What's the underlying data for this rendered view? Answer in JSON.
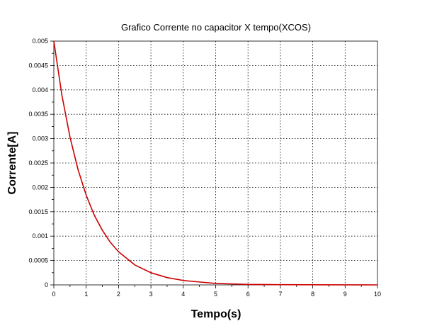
{
  "chart_data": {
    "type": "line",
    "title": "Grafico Corrente no capacitor X tempo(XCOS)",
    "xlabel": "Tempo(s)",
    "ylabel": "Corrente[A]",
    "xlim": [
      0,
      10
    ],
    "ylim": [
      0,
      0.005
    ],
    "xticks": [
      "0",
      "1",
      "2",
      "3",
      "4",
      "5",
      "6",
      "7",
      "8",
      "9",
      "10"
    ],
    "yticks": [
      "0",
      "0.0005",
      "0.001",
      "0.0015",
      "0.002",
      "0.0025",
      "0.003",
      "0.0035",
      "0.004",
      "0.0045",
      "0.005"
    ],
    "grid": true,
    "series": [
      {
        "color": "#cc0000",
        "x": [
          0,
          0.25,
          0.5,
          0.75,
          1,
          1.25,
          1.5,
          1.75,
          2,
          2.5,
          3,
          3.5,
          4,
          4.5,
          5,
          5.5,
          6,
          7,
          8,
          9,
          10
        ],
        "y": [
          0.005,
          0.00389,
          0.00303,
          0.00236,
          0.00184,
          0.00143,
          0.00112,
          0.00087,
          0.00068,
          0.00041,
          0.00025,
          0.00015,
          9e-05,
          6e-05,
          3e-05,
          2e-05,
          1e-05,
          5e-06,
          2e-06,
          1e-06,
          0
        ]
      }
    ]
  }
}
